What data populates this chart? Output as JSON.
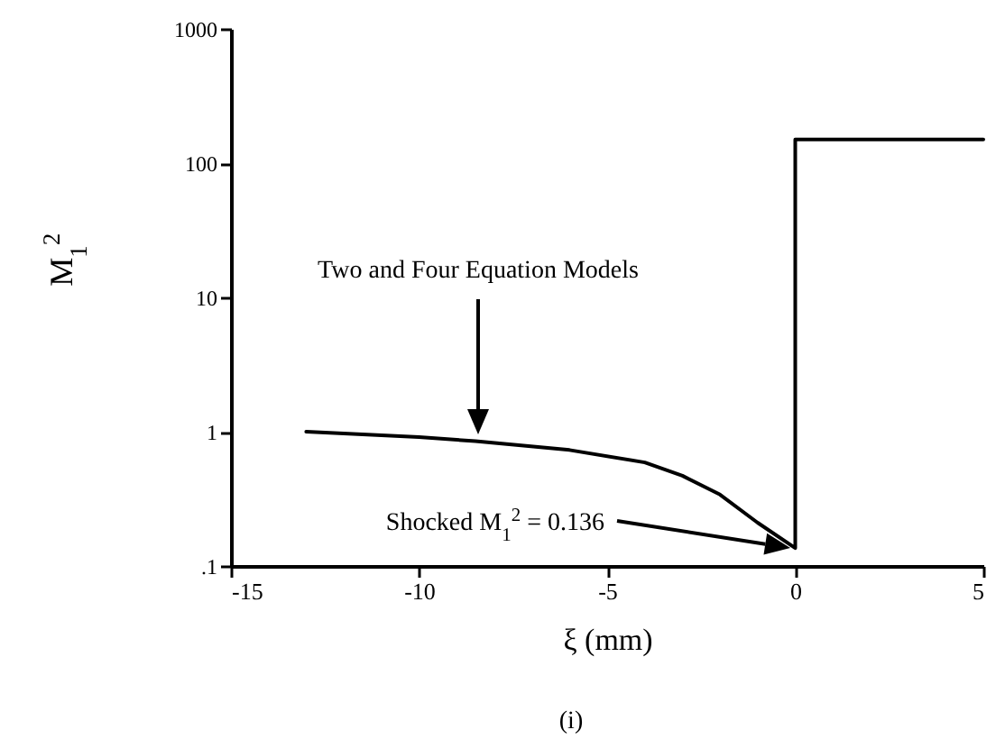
{
  "chart_data": {
    "type": "line",
    "xlabel": "ξ (mm)",
    "ylabel": "M$_{1}$$^{2}$",
    "x": [
      -13,
      -10,
      -8.5,
      -6,
      -4,
      -3,
      -2,
      -1,
      0,
      0,
      5
    ],
    "series": [
      {
        "color": "#000000",
        "values": [
          1.0,
          0.91,
          0.85,
          0.73,
          0.59,
          0.47,
          0.34,
          0.21,
          0.136,
          150,
          150
        ]
      }
    ],
    "xlim": [
      -15,
      5
    ],
    "ylim": [
      0.1,
      1000
    ],
    "xticks": [
      -15,
      -10,
      -5,
      0,
      5
    ],
    "yticks": [
      1000,
      100,
      10,
      1,
      {
        "value": 0.1,
        "label": ".1"
      }
    ],
    "log": "y",
    "grid": false,
    "marker": "none",
    "line_style": "solid",
    "annotations": [
      "Two and Four Equation Models",
      "Shocked M$_{1}$$^{2}$ = 0.136",
      "(i)"
    ]
  }
}
